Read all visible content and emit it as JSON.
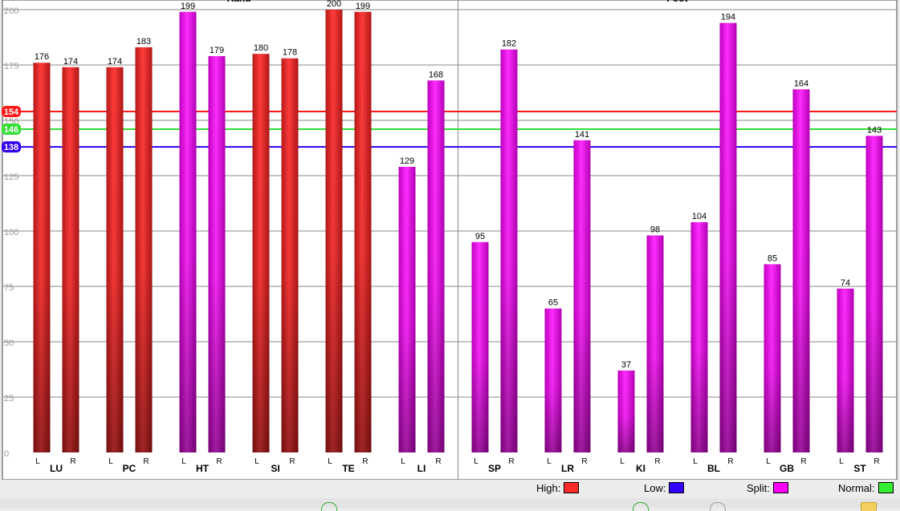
{
  "chart_data": {
    "type": "bar",
    "ylim": [
      0,
      200
    ],
    "yticks": [
      0,
      25,
      50,
      75,
      100,
      125,
      150,
      175,
      200
    ],
    "grid": true,
    "groups": [
      {
        "name": "Hand",
        "categories": [
          "LU",
          "PC",
          "HT",
          "SI",
          "TE",
          "LI"
        ]
      },
      {
        "name": "Foot",
        "categories": [
          "SP",
          "LR",
          "KI",
          "BL",
          "GB",
          "ST"
        ]
      }
    ],
    "side_labels": [
      "L",
      "R"
    ],
    "series": [
      {
        "name": "L",
        "values": [
          176,
          174,
          199,
          180,
          200,
          129,
          95,
          65,
          37,
          104,
          85,
          74
        ]
      },
      {
        "name": "R",
        "values": [
          174,
          183,
          179,
          178,
          199,
          168,
          182,
          141,
          98,
          194,
          164,
          143
        ]
      }
    ],
    "bar_status": {
      "L": [
        "High",
        "High",
        "Split",
        "High",
        "High",
        "Split",
        "Split",
        "Split",
        "Split",
        "Split",
        "Split",
        "Split"
      ],
      "R": [
        "High",
        "High",
        "Split",
        "High",
        "High",
        "Split",
        "Split",
        "Split",
        "Split",
        "Split",
        "Split",
        "Split"
      ]
    },
    "reference_lines": [
      {
        "label": "154",
        "value": 154,
        "color": "#ff1a1a"
      },
      {
        "label": "146",
        "value": 146,
        "color": "#33dd33"
      },
      {
        "label": "138",
        "value": 138,
        "color": "#3300ee"
      }
    ],
    "legend": [
      {
        "label": "High:",
        "color": "#ff2a2a"
      },
      {
        "label": "Low:",
        "color": "#3300ff"
      },
      {
        "label": "Split:",
        "color": "#ff00ff"
      },
      {
        "label": "Normal:",
        "color": "#33ee33"
      }
    ]
  }
}
